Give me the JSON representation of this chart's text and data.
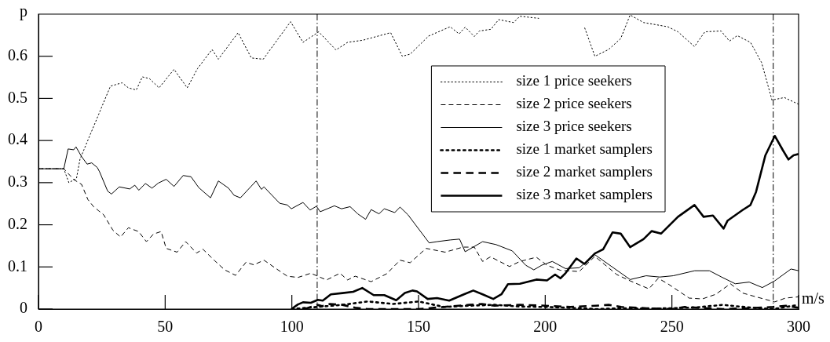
{
  "chart_data": {
    "type": "line",
    "xlabel": "m/s",
    "ylabel": "p",
    "xlim": [
      0,
      300
    ],
    "ylim": [
      0,
      0.7
    ],
    "xticks": [
      0,
      50,
      100,
      150,
      200,
      250,
      300
    ],
    "yticks": [
      0,
      0.1,
      0.2,
      0.3,
      0.4,
      0.5,
      0.6
    ],
    "grid": false,
    "legend": "top right",
    "marker": "none",
    "ref_lines": [
      {
        "axis": "x",
        "value": 110,
        "label": null
      },
      {
        "axis": "x",
        "value": 290,
        "label": null
      }
    ],
    "series": [
      {
        "name": "size 1 price seekers",
        "color": "#000000",
        "line_style": "dotted",
        "x": [
          0,
          10,
          12,
          15,
          16.4,
          28.4,
          33,
          35.5,
          38.6,
          41,
          43.8,
          47.6,
          53.5,
          58.7,
          62.8,
          68.5,
          71,
          78.8,
          84,
          88.7,
          99.5,
          104.4,
          110.6,
          117.4,
          122,
          128,
          139,
          143.6,
          146.7,
          154,
          162.5,
          166,
          168.4,
          172,
          174,
          178.6,
          181.6,
          187.5,
          190,
          197.4,
          201.7,
          210,
          215.6,
          219.6,
          225,
          229.8,
          233.5,
          238.8,
          248.4,
          252.4,
          258.9,
          263,
          269.4,
          272.7,
          275.8,
          281,
          285.4,
          289.5,
          294.4,
          300
        ],
        "values": [
          0.333,
          0.333,
          0.3,
          0.31,
          0.356,
          0.529,
          0.537,
          0.525,
          0.52,
          0.551,
          0.547,
          0.525,
          0.569,
          0.525,
          0.571,
          0.616,
          0.593,
          0.656,
          0.596,
          0.593,
          0.682,
          0.633,
          0.658,
          0.615,
          0.633,
          0.638,
          0.656,
          0.6,
          0.605,
          0.648,
          0.67,
          0.653,
          0.669,
          0.647,
          0.66,
          0.664,
          0.687,
          0.68,
          0.695,
          0.69,
          null,
          null,
          0.667,
          0.6,
          0.616,
          0.642,
          0.698,
          0.68,
          0.67,
          0.658,
          0.623,
          0.658,
          0.66,
          0.636,
          0.649,
          0.633,
          0.585,
          0.496,
          0.502,
          0.486
        ]
      },
      {
        "name": "size 2 price seekers",
        "color": "#000000",
        "line_style": "dashed",
        "x": [
          0,
          10,
          14,
          17,
          19.5,
          21.6,
          23.8,
          25.7,
          29.4,
          32.4,
          35.5,
          39.5,
          42.6,
          45.4,
          48.4,
          50.4,
          54.7,
          58.1,
          62.4,
          64.9,
          69.5,
          73.5,
          77.8,
          81.9,
          85,
          89,
          93.3,
          98.2,
          102.4,
          107.5,
          113.7,
          119,
          122,
          125,
          131.3,
          137.5,
          142.7,
          146.7,
          153,
          160.5,
          167.5,
          172,
          175.3,
          178.4,
          185.9,
          190,
          196.5,
          200.7,
          206,
          213.4,
          219.6,
          228.2,
          233.5,
          240.9,
          244.6,
          248.4,
          256.8,
          262,
          267.3,
          273.1,
          277.9,
          283.2,
          290.6,
          294.8,
          300
        ],
        "values": [
          0.333,
          0.333,
          0.307,
          0.296,
          0.26,
          0.244,
          0.233,
          0.224,
          0.187,
          0.171,
          0.193,
          0.184,
          0.16,
          0.178,
          0.184,
          0.144,
          0.135,
          0.16,
          0.133,
          0.142,
          0.115,
          0.093,
          0.08,
          0.111,
          0.105,
          0.116,
          0.098,
          0.078,
          0.075,
          0.085,
          0.069,
          0.085,
          0.069,
          0.078,
          0.065,
          0.084,
          0.116,
          0.11,
          0.144,
          0.135,
          0.147,
          0.147,
          0.113,
          0.124,
          0.101,
          0.113,
          0.123,
          0.104,
          0.092,
          0.089,
          0.125,
          0.082,
          0.067,
          0.048,
          0.073,
          0.06,
          0.026,
          0.024,
          0.035,
          0.06,
          0.038,
          0.029,
          0.017,
          0.026,
          0.029
        ]
      },
      {
        "name": "size 3 price seekers",
        "color": "#000000",
        "line_style": "solid",
        "x": [
          0,
          10,
          11.7,
          13.9,
          14.8,
          17,
          19.2,
          21,
          23.2,
          24.1,
          27.3,
          28.8,
          31.9,
          36,
          38,
          39.6,
          42.2,
          44.8,
          47.3,
          50.4,
          53.5,
          57.1,
          60.2,
          63.3,
          67.9,
          71,
          75,
          77.2,
          79.7,
          85.9,
          88,
          89,
          95.2,
          98.2,
          99.8,
          104.4,
          107.2,
          109.7,
          111.2,
          116.8,
          119.6,
          123,
          126,
          129.1,
          131.3,
          134.4,
          136.5,
          140.6,
          142.7,
          145.8,
          154.2,
          157.3,
          162.5,
          166.2,
          168.4,
          175.3,
          180.6,
          187,
          192.3,
          195.5,
          198.6,
          202.8,
          208,
          213.4,
          219.6,
          233.5,
          239.8,
          245.2,
          250.5,
          259,
          264.8,
          269.6,
          275,
          280.5,
          285.7,
          290.6,
          297,
          300
        ],
        "values": [
          0.333,
          0.333,
          0.38,
          0.378,
          0.385,
          0.362,
          0.344,
          0.347,
          0.336,
          0.326,
          0.28,
          0.273,
          0.29,
          0.285,
          0.294,
          0.282,
          0.298,
          0.287,
          0.299,
          0.308,
          0.291,
          0.317,
          0.314,
          0.288,
          0.264,
          0.304,
          0.287,
          0.27,
          0.264,
          0.304,
          0.284,
          0.29,
          0.251,
          0.247,
          0.238,
          0.253,
          0.235,
          0.244,
          0.231,
          0.245,
          0.238,
          0.243,
          0.226,
          0.213,
          0.236,
          0.226,
          0.238,
          0.229,
          0.242,
          0.224,
          0.157,
          0.16,
          0.164,
          0.166,
          0.136,
          0.16,
          0.153,
          0.138,
          0.104,
          0.093,
          0.104,
          0.113,
          0.096,
          0.098,
          0.129,
          0.07,
          0.079,
          0.076,
          0.079,
          0.091,
          0.091,
          0.076,
          0.06,
          0.064,
          0.051,
          0.067,
          0.095,
          0.091
        ]
      },
      {
        "name": "size 1 market samplers",
        "color": "#000000",
        "line_style": "dotted",
        "x": [
          100,
          110,
          120,
          130,
          140,
          150,
          160,
          170,
          180,
          190,
          200,
          210,
          220,
          230,
          240,
          250,
          260,
          270,
          280,
          290,
          300
        ],
        "values": [
          0,
          0.005,
          0.01,
          0.018,
          0.012,
          0.018,
          0.005,
          0.008,
          0.01,
          0.006,
          0.005,
          0.003,
          0,
          0.002,
          0.001,
          0.002,
          0.004,
          0.01,
          0.004,
          0,
          0.01
        ]
      },
      {
        "name": "size 2 market samplers",
        "color": "#000000",
        "line_style": "dashed",
        "x": [
          105,
          110,
          112,
          115,
          120,
          125,
          130,
          150,
          160,
          170,
          175,
          180,
          190,
          200,
          210,
          220,
          225,
          230,
          240,
          250,
          255,
          260,
          270,
          280,
          290,
          295,
          300
        ],
        "values": [
          0,
          0.01,
          0.007,
          0.012,
          0.01,
          0.003,
          0,
          0,
          0.005,
          0.01,
          0.012,
          0.008,
          0.01,
          0.008,
          0.005,
          0.008,
          0.01,
          0.005,
          0.002,
          0,
          0.005,
          0.003,
          0,
          0.002,
          0.005,
          0.008,
          0.003
        ]
      },
      {
        "name": "size 3 market samplers",
        "color": "#000000",
        "line_style": "solid",
        "x": [
          99.8,
          102.4,
          104.4,
          107.5,
          110.3,
          112.2,
          115.4,
          120,
          124.2,
          127.8,
          132.3,
          136.5,
          141.2,
          144.6,
          147.6,
          149.4,
          153.6,
          157.3,
          162.1,
          167.9,
          171.6,
          175.3,
          179.5,
          182.7,
          185.3,
          190,
          196.5,
          200.7,
          203.9,
          206,
          208,
          212.3,
          215.5,
          219.6,
          222.9,
          226.6,
          229.8,
          233.5,
          238.8,
          242,
          245.7,
          252.4,
          258.9,
          262.5,
          266.2,
          270.4,
          272,
          277.9,
          281,
          283.2,
          286.9,
          290.6,
          293.8,
          296,
          298,
          300
        ],
        "values": [
          0,
          0.011,
          0.016,
          0.015,
          0.022,
          0.02,
          0.035,
          0.038,
          0.041,
          0.05,
          0.033,
          0.033,
          0.021,
          0.038,
          0.044,
          0.042,
          0.024,
          0.026,
          0.02,
          0.035,
          0.044,
          0.035,
          0.024,
          0.035,
          0.059,
          0.06,
          0.07,
          0.068,
          0.082,
          0.073,
          0.085,
          0.12,
          0.107,
          0.132,
          0.142,
          0.182,
          0.179,
          0.147,
          0.166,
          0.185,
          0.179,
          0.219,
          0.247,
          0.219,
          0.222,
          0.191,
          0.21,
          0.235,
          0.247,
          0.278,
          0.365,
          0.411,
          0.377,
          0.355,
          0.365,
          0.368
        ]
      }
    ]
  }
}
